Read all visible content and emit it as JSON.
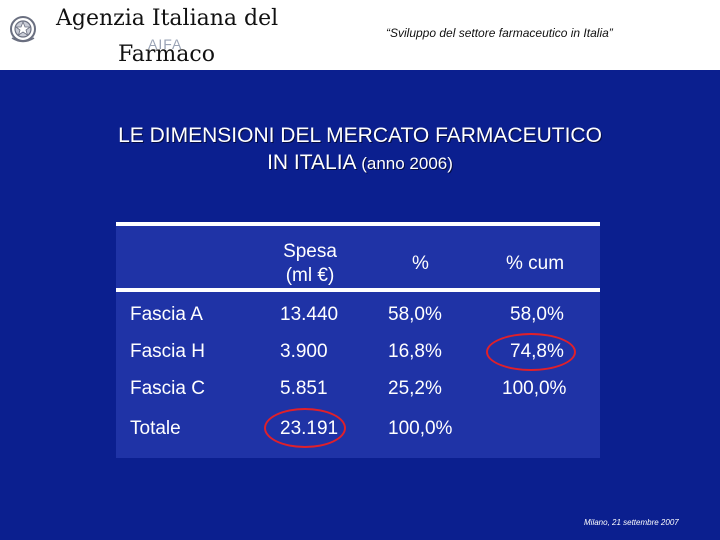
{
  "header": {
    "agency_line1": "Agenzia Italiana del",
    "agency_line2": "Farmaco",
    "logo_text": "AIFA",
    "subtitle": "“Sviluppo del settore farmaceutico in Italia”",
    "emblem_icon": "italian-emblem-icon"
  },
  "title": {
    "line1": "LE DIMENSIONI DEL MERCATO FARMACEUTICO",
    "line2_main": "IN ITALIA",
    "line2_small": "(anno 2006)"
  },
  "table": {
    "headers": {
      "spesa_line1": "Spesa",
      "spesa_line2": "(ml €)",
      "pct": "%",
      "pct_cum": "% cum"
    },
    "rows": [
      {
        "label": "Fascia A",
        "spesa": "13.440",
        "pct": "58,0%",
        "pct_cum": "58,0%"
      },
      {
        "label": "Fascia H",
        "spesa": "3.900",
        "pct": "16,8%",
        "pct_cum": "74,8%"
      },
      {
        "label": "Fascia C",
        "spesa": "5.851",
        "pct": "25,2%",
        "pct_cum": "100,0%"
      },
      {
        "label": "Totale",
        "spesa": "23.191",
        "pct": "100,0%",
        "pct_cum": ""
      }
    ]
  },
  "footer": {
    "text": "Milano, 21 settembre 2007"
  },
  "colors": {
    "background": "#0b1f8f",
    "table_fill": "#1f33a6",
    "highlight_circle": "#e0202a"
  }
}
